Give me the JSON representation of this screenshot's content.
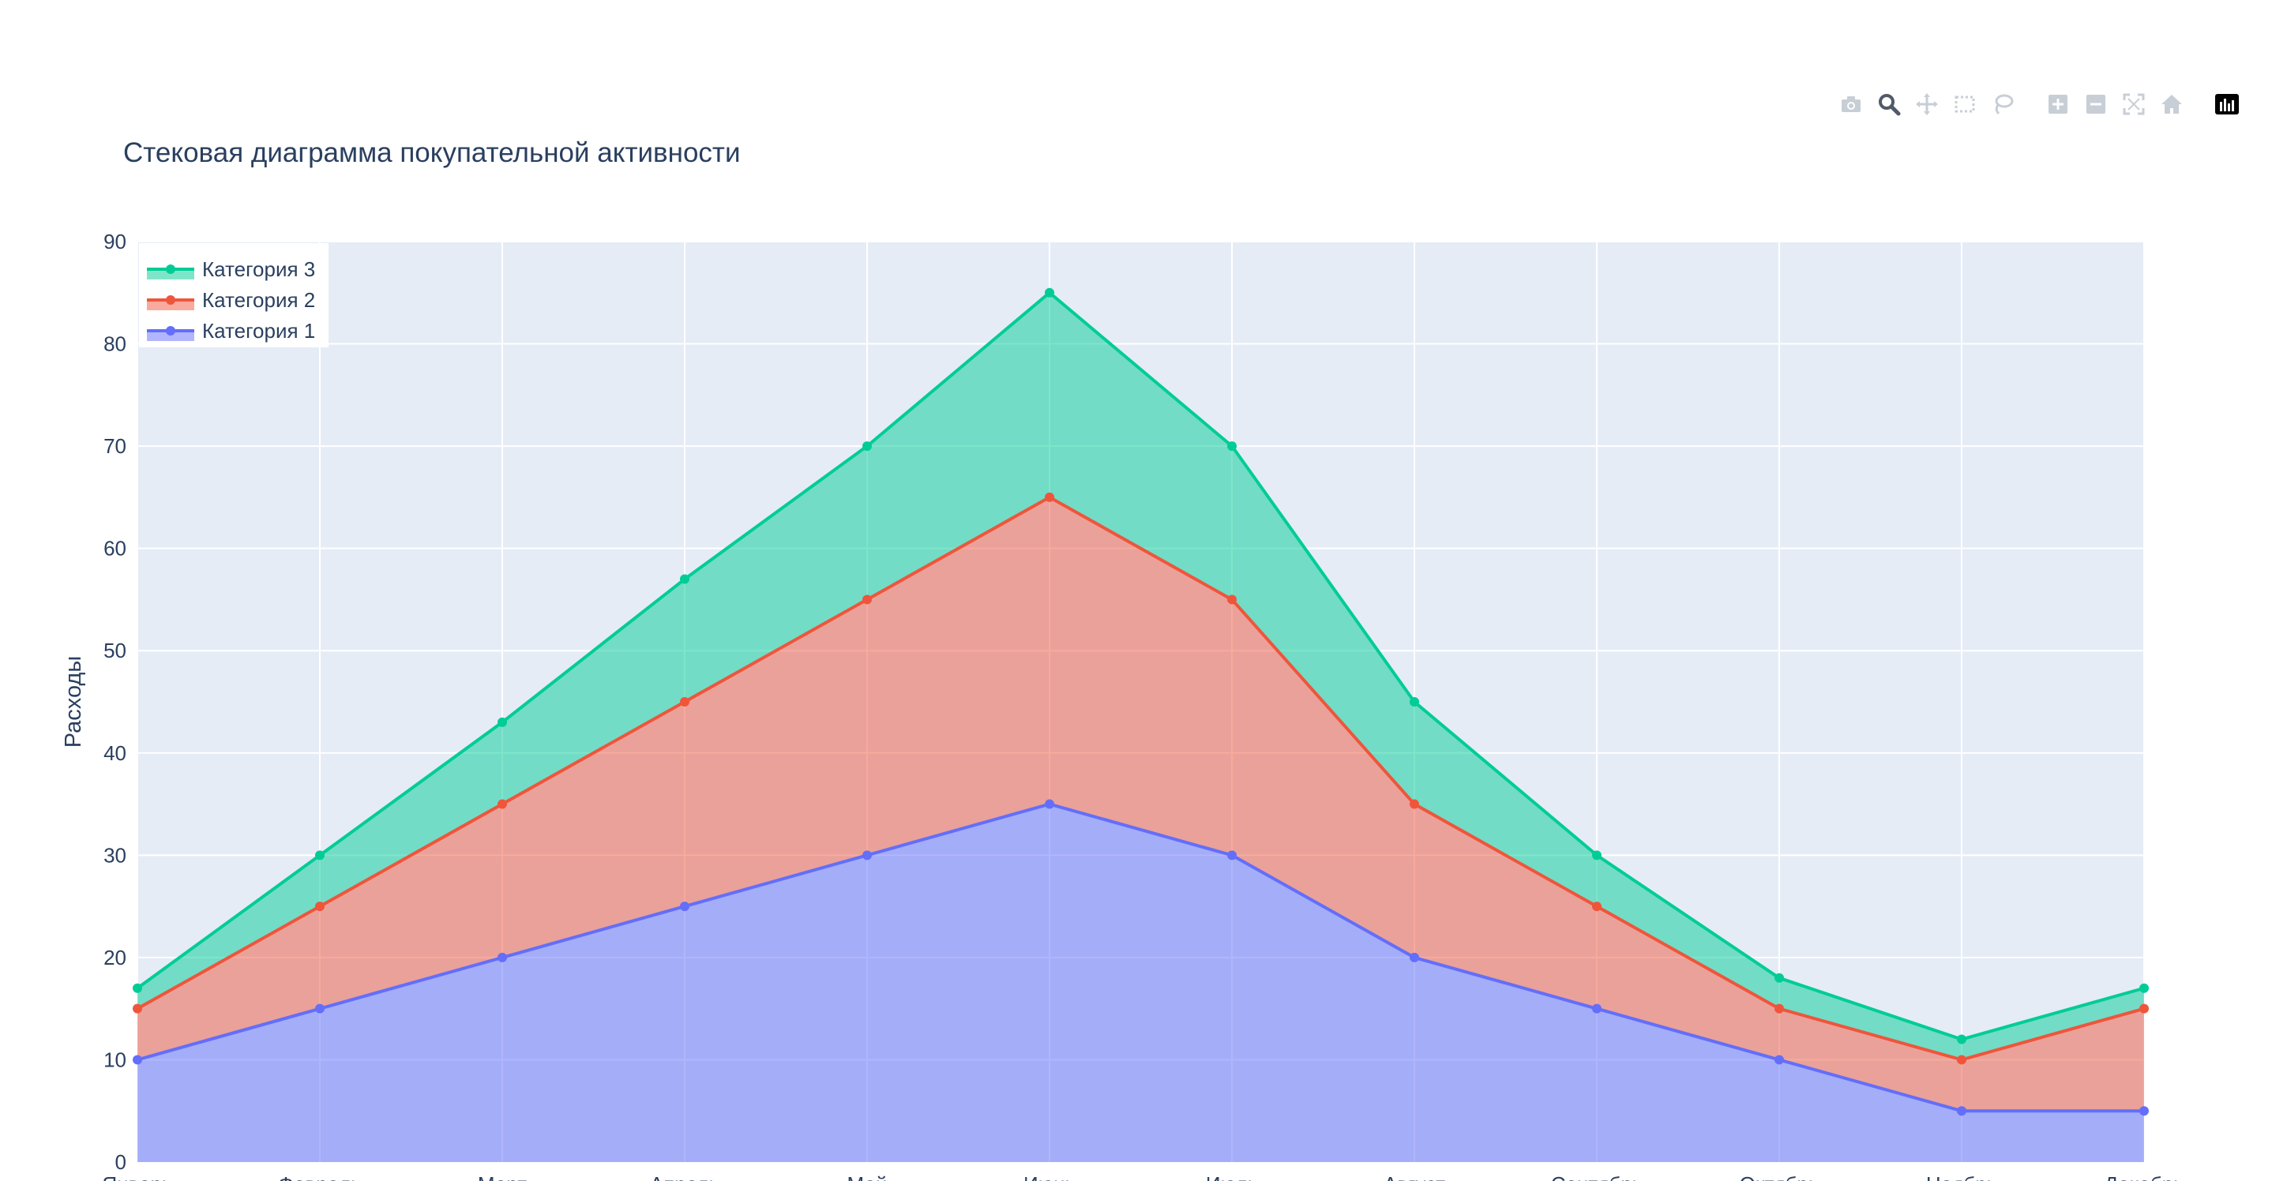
{
  "chart_data": {
    "type": "area",
    "stacked": true,
    "title": "Стековая диаграмма покупательной активности",
    "xlabel": "",
    "ylabel": "Расходы",
    "ylim": [
      0,
      90
    ],
    "yticks": [
      0,
      10,
      20,
      30,
      40,
      50,
      60,
      70,
      80,
      90
    ],
    "categories": [
      "Январь",
      "Февраль",
      "Март",
      "Апрель",
      "Май",
      "Июнь",
      "Июль",
      "Август",
      "Сентябрь",
      "Октябрь",
      "Ноябрь",
      "Декабрь"
    ],
    "series": [
      {
        "name": "Категория 1",
        "color": "#636efa",
        "fill": "rgba(99,110,250,0.5)",
        "values": [
          10,
          15,
          20,
          25,
          30,
          35,
          30,
          20,
          15,
          10,
          5,
          5
        ]
      },
      {
        "name": "Категория 2",
        "color": "#ef553b",
        "fill": "rgba(239,85,59,0.5)",
        "values": [
          5,
          10,
          15,
          20,
          25,
          30,
          25,
          15,
          10,
          5,
          5,
          10
        ]
      },
      {
        "name": "Категория 3",
        "color": "#00cc96",
        "fill": "rgba(0,204,150,0.5)",
        "values": [
          2,
          5,
          8,
          12,
          15,
          20,
          15,
          10,
          5,
          3,
          2,
          2
        ]
      }
    ],
    "grid": true,
    "plot_bg": "#e5ecf6",
    "legend_position": "top-left",
    "legend_order": [
      "Категория 3",
      "Категория 2",
      "Категория 1"
    ]
  },
  "modebar": {
    "buttons": [
      "camera-icon",
      "zoom-icon",
      "pan-icon",
      "box-select-icon",
      "lasso-select-icon",
      "zoom-in-icon",
      "zoom-out-icon",
      "autoscale-icon",
      "reset-axes-icon",
      "plotly-logo-icon"
    ]
  }
}
